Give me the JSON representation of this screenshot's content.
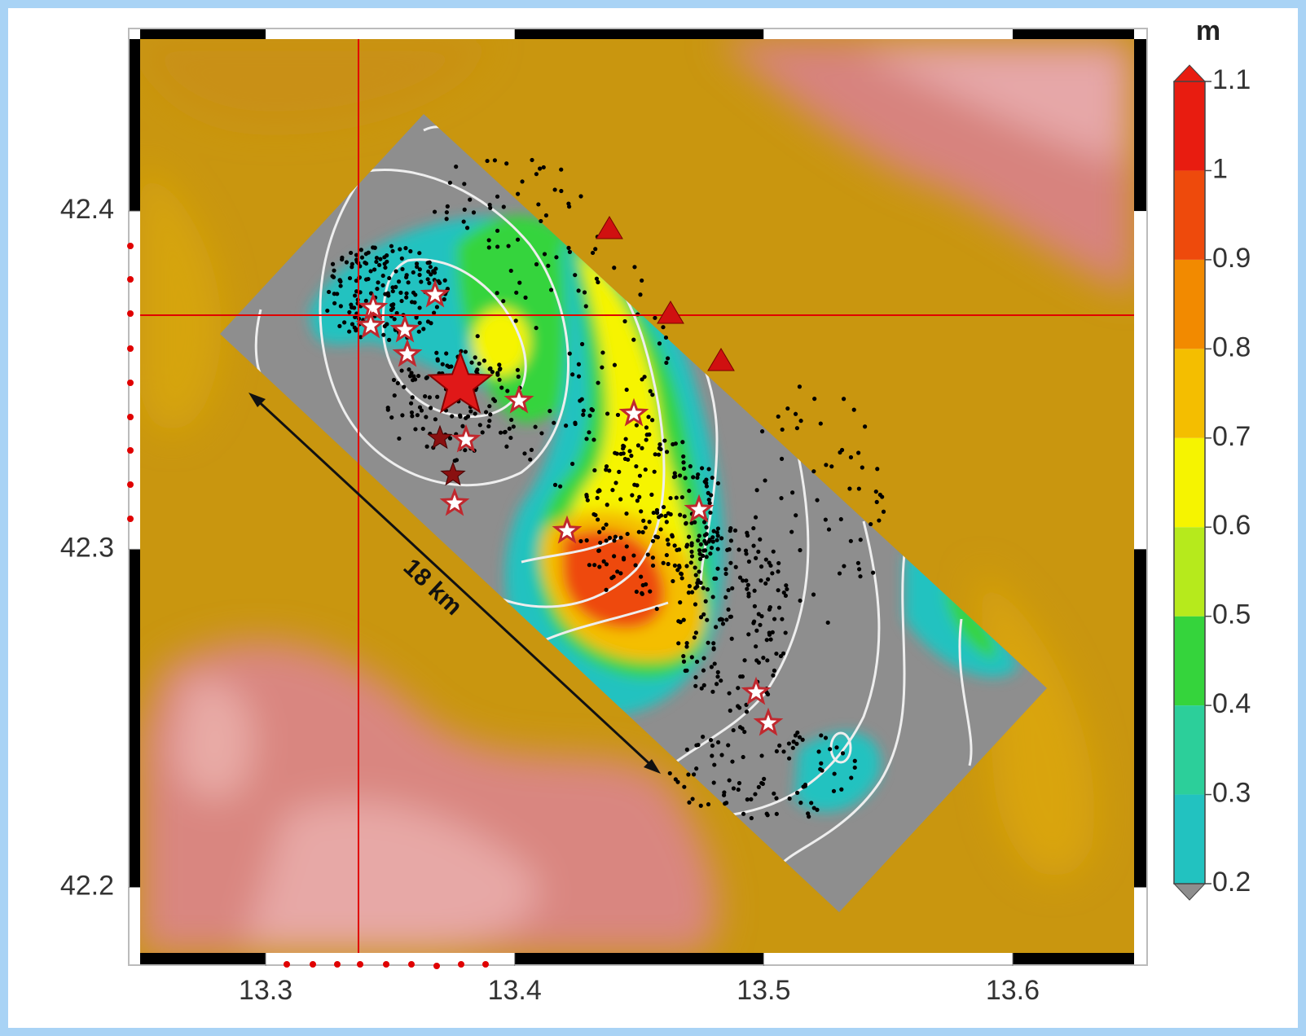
{
  "map": {
    "xlim": [
      13.245,
      13.654
    ],
    "ylim": [
      42.177,
      42.454
    ],
    "xticks": [
      13.3,
      13.4,
      13.5,
      13.6
    ],
    "yticks": [
      42.2,
      42.3,
      42.4
    ],
    "scale_label": "18 km",
    "colorbar": {
      "label": "m",
      "lim": [
        0.2,
        1.1
      ],
      "ticks": [
        0.2,
        0.3,
        0.4,
        0.5,
        0.6,
        0.7,
        0.8,
        0.9,
        1.0,
        1.1
      ],
      "colors": [
        "#22c2c0",
        "#2ccf9a",
        "#35d43c",
        "#b6ea1c",
        "#f6f400",
        "#f4be00",
        "#f28a00",
        "#ee4a0c",
        "#e81c10"
      ]
    }
  }
}
